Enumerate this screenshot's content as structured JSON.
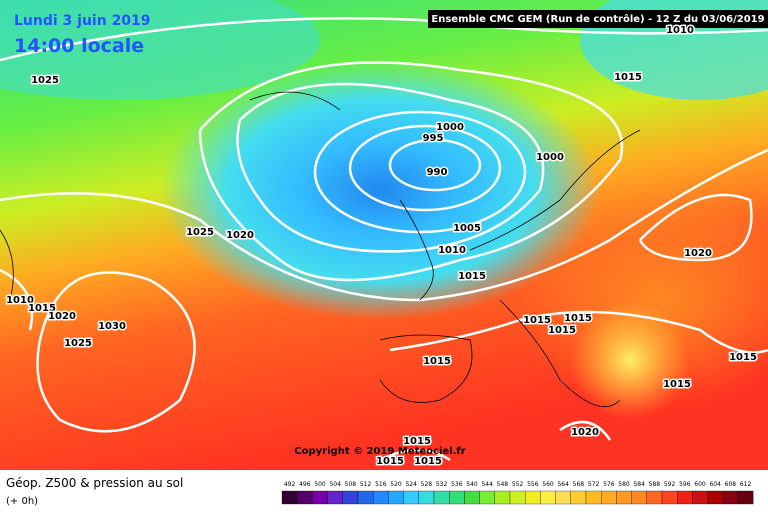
{
  "header": {
    "date": "Lundi 3 juin 2019",
    "time": "14:00 locale",
    "run": "Ensemble CMC GEM (Run de contrôle) - 12 Z du 03/06/2019"
  },
  "copyright": "Copyright © 2019 Meteociel.fr",
  "isobar_labels": [
    1010,
    1025,
    1015,
    1000,
    995,
    990,
    1000,
    1025,
    1020,
    1005,
    1010,
    1015,
    1020,
    1010,
    1015,
    1020,
    1030,
    1025,
    1015,
    1015,
    1015,
    1015,
    1015,
    1015,
    1020,
    1015,
    1015,
    1015
  ],
  "legend": {
    "title": "Géop. Z500 & pression au sol",
    "subtitle": "(+ 0h)",
    "values": [
      492,
      496,
      500,
      504,
      508,
      512,
      516,
      520,
      524,
      528,
      532,
      536,
      540,
      544,
      548,
      552,
      556,
      560,
      564,
      568,
      572,
      576,
      580,
      584,
      588,
      592,
      596,
      600,
      604,
      608,
      612
    ]
  }
}
